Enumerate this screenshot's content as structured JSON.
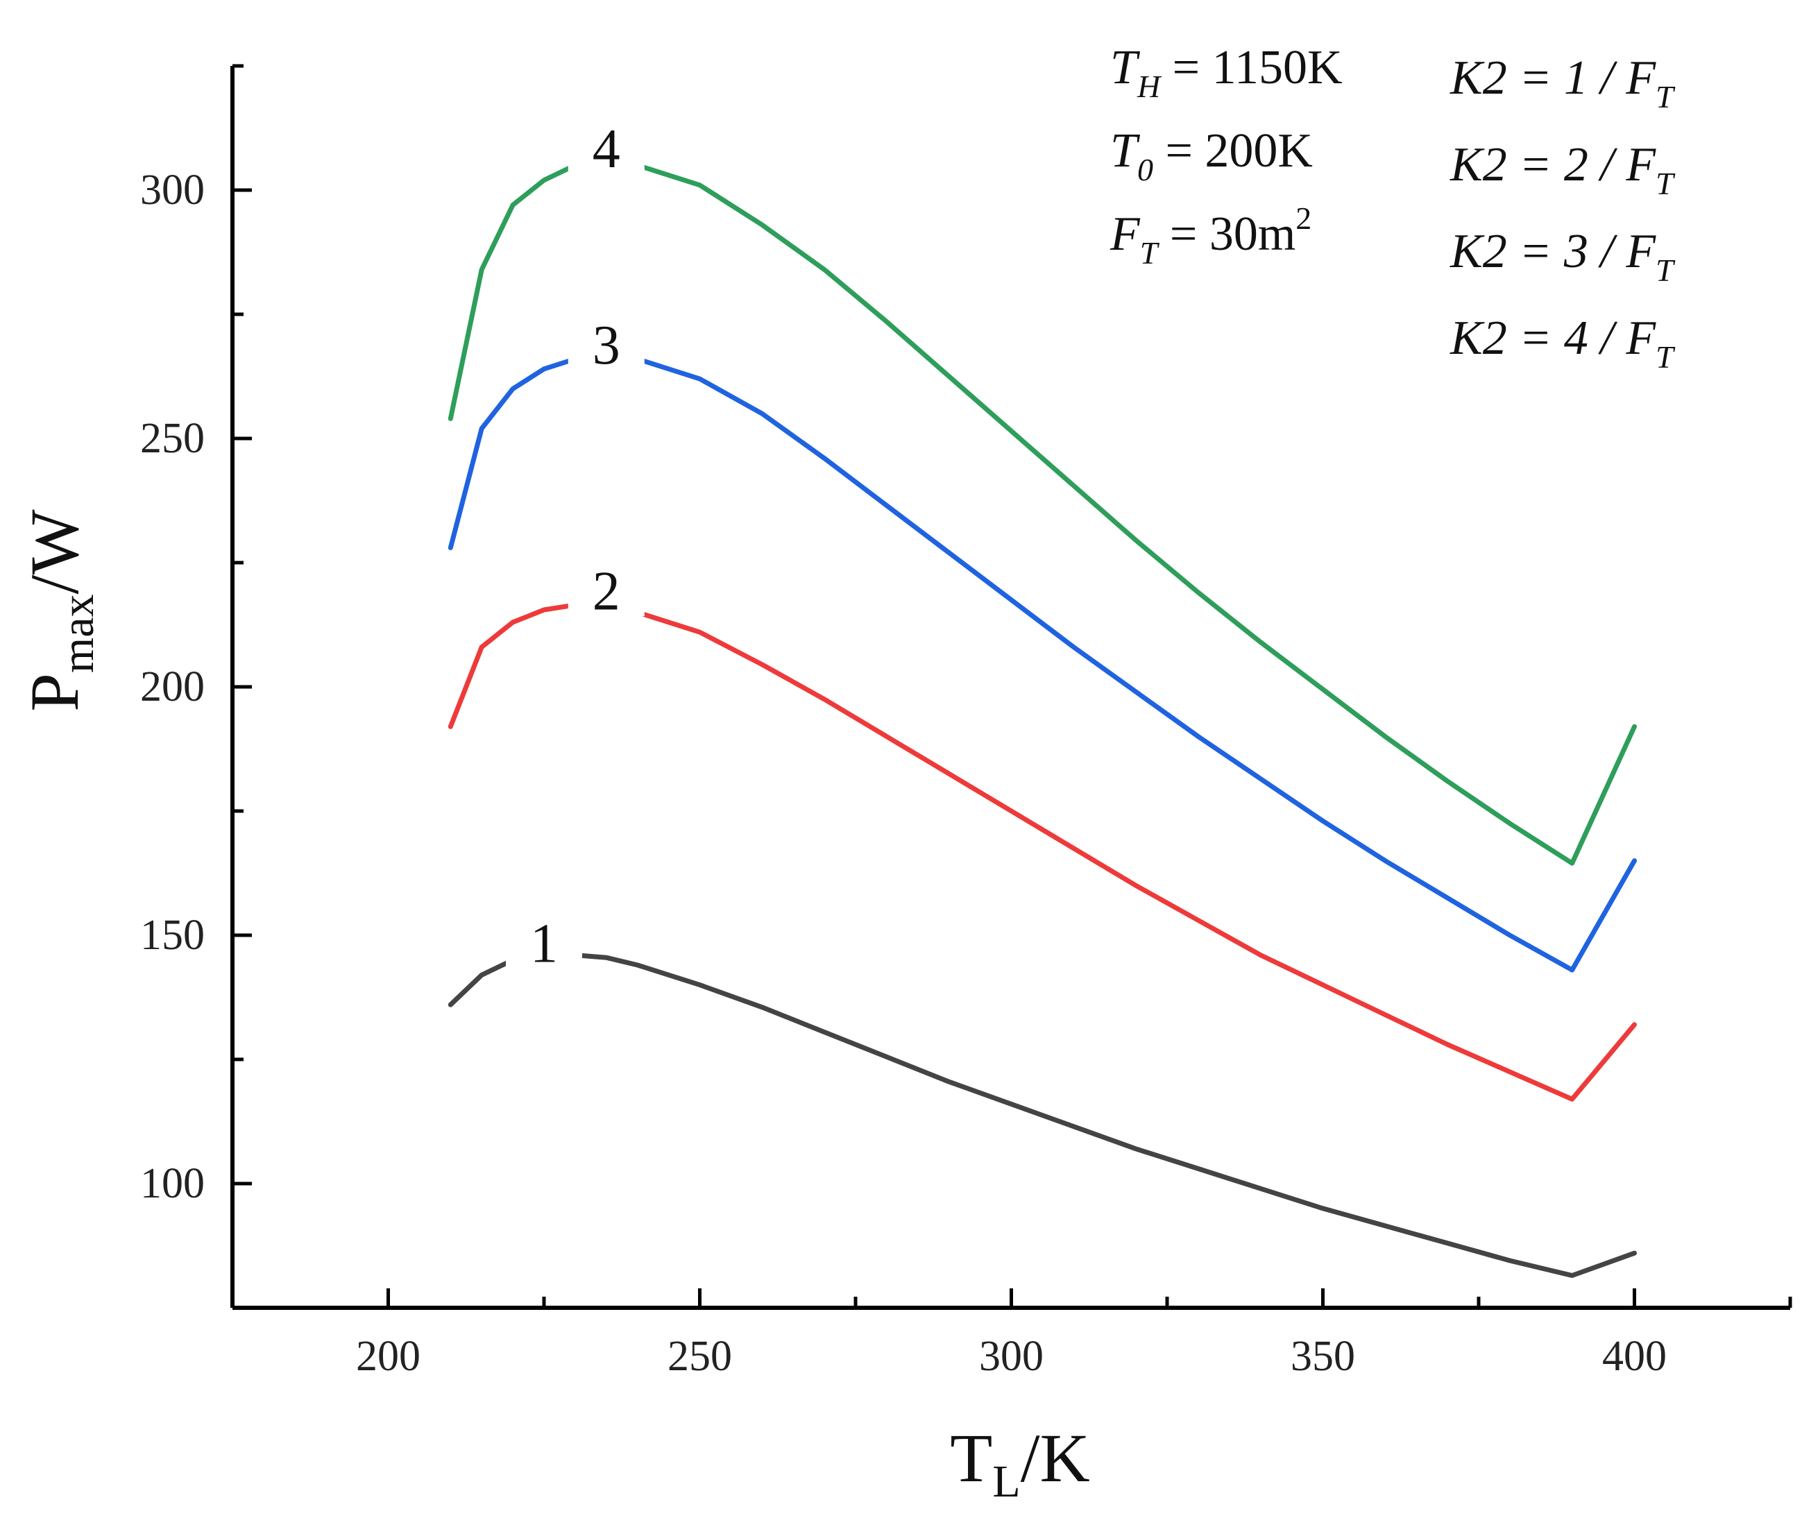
{
  "chart_data": {
    "type": "line",
    "title": "",
    "xlabel": {
      "main": "T",
      "sub": "L",
      "suffix": "/K"
    },
    "ylabel": {
      "main": "P",
      "sub": "max",
      "suffix": "/W"
    },
    "xlim": [
      175,
      425
    ],
    "ylim": [
      75,
      325
    ],
    "xticks": [
      200,
      250,
      300,
      350,
      400
    ],
    "yticks": [
      100,
      150,
      200,
      250,
      300
    ],
    "x_minor_step": 25,
    "y_minor_step": 25,
    "grid": false,
    "x": [
      210,
      215,
      220,
      225,
      230,
      235,
      240,
      250,
      260,
      270,
      280,
      290,
      300,
      310,
      320,
      330,
      340,
      350,
      360,
      370,
      380,
      390,
      400
    ],
    "series": [
      {
        "name": "1",
        "label": "1",
        "color": "#444444",
        "values": [
          136,
          142,
          145,
          146,
          146,
          145.5,
          144,
          140,
          135.5,
          130.5,
          125.5,
          120.5,
          116,
          111.5,
          107,
          103,
          99,
          95,
          91.5,
          88,
          84.5,
          81.5,
          86
        ]
      },
      {
        "name": "2",
        "label": "2",
        "color": "#ee3a3a",
        "values": [
          192,
          208,
          213,
          215.5,
          216.5,
          217,
          215,
          211,
          204.5,
          197.5,
          190,
          182.5,
          175,
          167.5,
          160,
          153,
          146,
          140,
          134,
          128,
          122.5,
          117,
          132
        ]
      },
      {
        "name": "3",
        "label": "3",
        "color": "#1f63e0",
        "values": [
          228,
          252,
          260,
          264,
          266,
          266.5,
          266,
          262,
          255,
          246,
          236.5,
          227,
          217.5,
          208,
          199,
          190,
          181.5,
          173,
          165,
          157.5,
          150,
          143,
          165
        ]
      },
      {
        "name": "4",
        "label": "4",
        "color": "#2e9e5b",
        "values": [
          254,
          284,
          297,
          302,
          305,
          306,
          305,
          301,
          293,
          284,
          273.5,
          262.5,
          251.5,
          240.5,
          229.5,
          219,
          209,
          199.5,
          190,
          181,
          172.5,
          164.5,
          192
        ]
      }
    ],
    "annotations": {
      "conditions": [
        {
          "var": "T",
          "sub": "H",
          "value": " = 1150K"
        },
        {
          "var": "T",
          "sub": "0",
          "value": " = 200K"
        },
        {
          "var": "F",
          "sub": "T",
          "value": " = 30m",
          "sup": "2"
        }
      ],
      "k2": [
        {
          "lhs": "K2 = 1 / ",
          "var": "F",
          "sub": "T"
        },
        {
          "lhs": "K2 = 2 / ",
          "var": "F",
          "sub": "T"
        },
        {
          "lhs": "K2 = 3 / ",
          "var": "F",
          "sub": "T"
        },
        {
          "lhs": "K2 = 4 / ",
          "var": "F",
          "sub": "T"
        }
      ]
    }
  }
}
